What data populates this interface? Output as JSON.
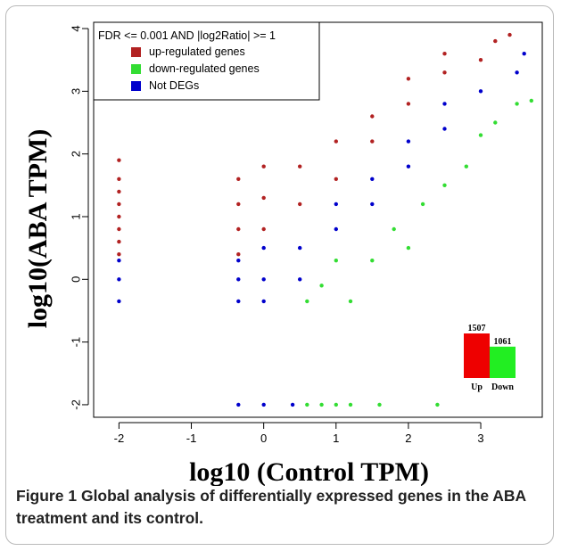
{
  "chart_data": {
    "type": "scatter",
    "xlabel": "log10 (Control TPM)",
    "ylabel": "log10(ABA TPM)",
    "xlim": [
      -2.35,
      3.85
    ],
    "ylim": [
      -2.2,
      4.1
    ],
    "x_ticks": [
      -2,
      -1,
      0,
      1,
      2,
      3
    ],
    "y_ticks": [
      -2,
      -1,
      0,
      1,
      2,
      3,
      4
    ],
    "legend_title": "FDR <= 0.001 AND |log2Ratio| >= 1",
    "legend_placement": "top-left",
    "series": [
      {
        "name": "up-regulated genes",
        "color": "#b22222",
        "points": [
          [
            -2,
            0.4
          ],
          [
            -2,
            0.6
          ],
          [
            -2,
            0.8
          ],
          [
            -2,
            1.0
          ],
          [
            -2,
            1.2
          ],
          [
            -2,
            1.4
          ],
          [
            -2,
            1.6
          ],
          [
            -2,
            1.9
          ],
          [
            -0.35,
            0.4
          ],
          [
            -0.35,
            0.8
          ],
          [
            -0.35,
            1.2
          ],
          [
            -0.35,
            1.6
          ],
          [
            0,
            0.8
          ],
          [
            0,
            1.3
          ],
          [
            0,
            1.8
          ],
          [
            0.5,
            1.2
          ],
          [
            0.5,
            1.8
          ],
          [
            1,
            1.6
          ],
          [
            1,
            2.2
          ],
          [
            1.5,
            2.2
          ],
          [
            1.5,
            2.6
          ],
          [
            2,
            2.8
          ],
          [
            2,
            3.2
          ],
          [
            2.5,
            3.3
          ],
          [
            2.5,
            3.6
          ],
          [
            3,
            3.5
          ],
          [
            3.2,
            3.8
          ],
          [
            3.4,
            3.9
          ]
        ]
      },
      {
        "name": "down-regulated genes",
        "color": "#33dd33",
        "points": [
          [
            0.6,
            -0.35
          ],
          [
            0.8,
            -0.1
          ],
          [
            1,
            0.3
          ],
          [
            1.2,
            -0.35
          ],
          [
            1.5,
            0.3
          ],
          [
            1.8,
            0.8
          ],
          [
            2,
            0.5
          ],
          [
            2.2,
            1.2
          ],
          [
            2.5,
            1.5
          ],
          [
            2.8,
            1.8
          ],
          [
            3,
            2.3
          ],
          [
            3.2,
            2.5
          ],
          [
            3.5,
            2.8
          ],
          [
            3.7,
            2.85
          ],
          [
            0.6,
            -2
          ],
          [
            0.8,
            -2
          ],
          [
            1,
            -2
          ],
          [
            1.2,
            -2
          ],
          [
            1.6,
            -2
          ],
          [
            2.4,
            -2
          ]
        ]
      },
      {
        "name": "Not DEGs",
        "color": "#0000cc",
        "points": [
          [
            -2,
            -0.35
          ],
          [
            -2,
            0
          ],
          [
            -2,
            0.3
          ],
          [
            -0.35,
            -0.35
          ],
          [
            -0.35,
            0
          ],
          [
            -0.35,
            0.3
          ],
          [
            0,
            -0.35
          ],
          [
            0,
            0
          ],
          [
            0,
            0.5
          ],
          [
            0.5,
            0
          ],
          [
            0.5,
            0.5
          ],
          [
            1,
            0.8
          ],
          [
            1,
            1.2
          ],
          [
            1.5,
            1.2
          ],
          [
            1.5,
            1.6
          ],
          [
            2,
            1.8
          ],
          [
            2,
            2.2
          ],
          [
            2.5,
            2.4
          ],
          [
            2.5,
            2.8
          ],
          [
            3,
            3.0
          ],
          [
            3.5,
            3.3
          ],
          [
            3.6,
            3.6
          ],
          [
            -0.35,
            -2
          ],
          [
            0,
            -2
          ],
          [
            0.4,
            -2
          ]
        ]
      }
    ],
    "inset_bar": {
      "categories": [
        "Up",
        "Down"
      ],
      "values": [
        1507,
        1061
      ],
      "colors": [
        "#ee0000",
        "#22ee22"
      ]
    }
  },
  "caption": {
    "figure_label": "Figure 1",
    "title": "Global analysis of differentially expressed genes in the ABA treatment and its control."
  }
}
